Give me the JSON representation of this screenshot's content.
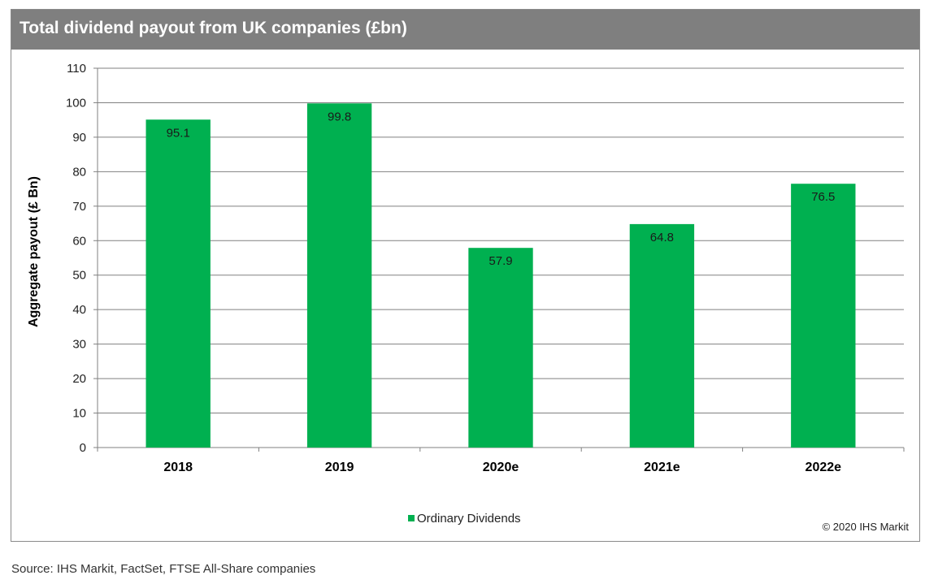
{
  "chart_data": {
    "type": "bar",
    "title": "Total dividend payout from UK companies (£bn)",
    "xlabel": "",
    "ylabel": "Aggregate payout (£ Bn)",
    "categories": [
      "2018",
      "2019",
      "2020e",
      "2021e",
      "2022e"
    ],
    "series": [
      {
        "name": "Ordinary Dividends",
        "values": [
          95.1,
          99.8,
          57.9,
          64.8,
          76.5
        ],
        "color": "#00b050"
      }
    ],
    "data_labels": [
      "95.1",
      "99.8",
      "57.9",
      "64.8",
      "76.5"
    ],
    "ylim": [
      0,
      110
    ],
    "yticks": [
      "0",
      "10",
      "20",
      "30",
      "40",
      "50",
      "60",
      "70",
      "80",
      "90",
      "100",
      "110"
    ],
    "grid": true,
    "legend_position": "bottom-center"
  },
  "copyright": "© 2020 IHS Markit",
  "source": "Source: IHS Markit, FactSet, FTSE All-Share companies",
  "colors": {
    "title_bar": "#7f7f7f",
    "title_text": "#ffffff",
    "bars": "#00b050",
    "gridlines": "#808080"
  }
}
